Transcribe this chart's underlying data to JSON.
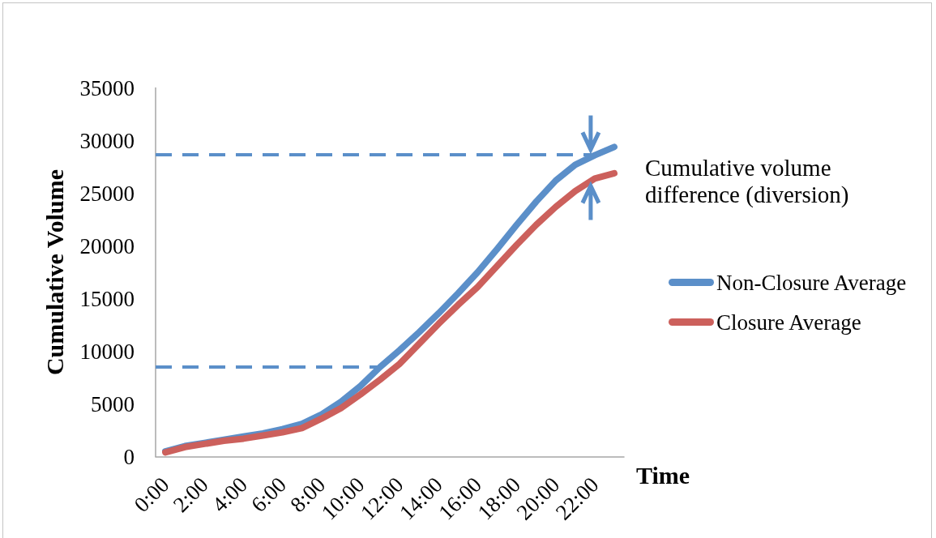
{
  "chart_data": {
    "type": "line",
    "xlabel": "Time",
    "ylabel": "Cumulative Volume",
    "categories": [
      "0:00",
      null,
      "2:00",
      null,
      "4:00",
      null,
      "6:00",
      null,
      "8:00",
      null,
      "10:00",
      null,
      "12:00",
      null,
      "14:00",
      null,
      "16:00",
      null,
      "18:00",
      null,
      "20:00",
      null,
      "22:00",
      null
    ],
    "series": [
      {
        "name": "Non-Closure Average",
        "color": "#5b8fc9",
        "values": [
          500,
          1000,
          1300,
          1600,
          1900,
          2200,
          2600,
          3100,
          4000,
          5200,
          6700,
          8500,
          10100,
          11800,
          13600,
          15500,
          17500,
          19700,
          22000,
          24200,
          26200,
          27700,
          28600,
          29400
        ]
      },
      {
        "name": "Closure Average",
        "color": "#cc605c",
        "values": [
          400,
          900,
          1200,
          1500,
          1700,
          2000,
          2300,
          2700,
          3600,
          4600,
          5900,
          7300,
          8800,
          10700,
          12600,
          14400,
          16100,
          18100,
          20100,
          22000,
          23700,
          25200,
          26400,
          26900
        ]
      }
    ],
    "ylim": [
      0,
      35000
    ],
    "yticks": [
      0,
      5000,
      10000,
      15000,
      20000,
      25000,
      30000,
      35000
    ],
    "legend": "right",
    "ref_lines": [
      {
        "axis": "y",
        "value": 28700,
        "color": "#5b8fc9",
        "line_style": "dashed"
      },
      {
        "axis": "y",
        "value": 8500,
        "color": "#5b8fc9",
        "line_style": "dashed"
      }
    ],
    "annotations": [
      "Cumulative volume difference (diversion)"
    ]
  }
}
